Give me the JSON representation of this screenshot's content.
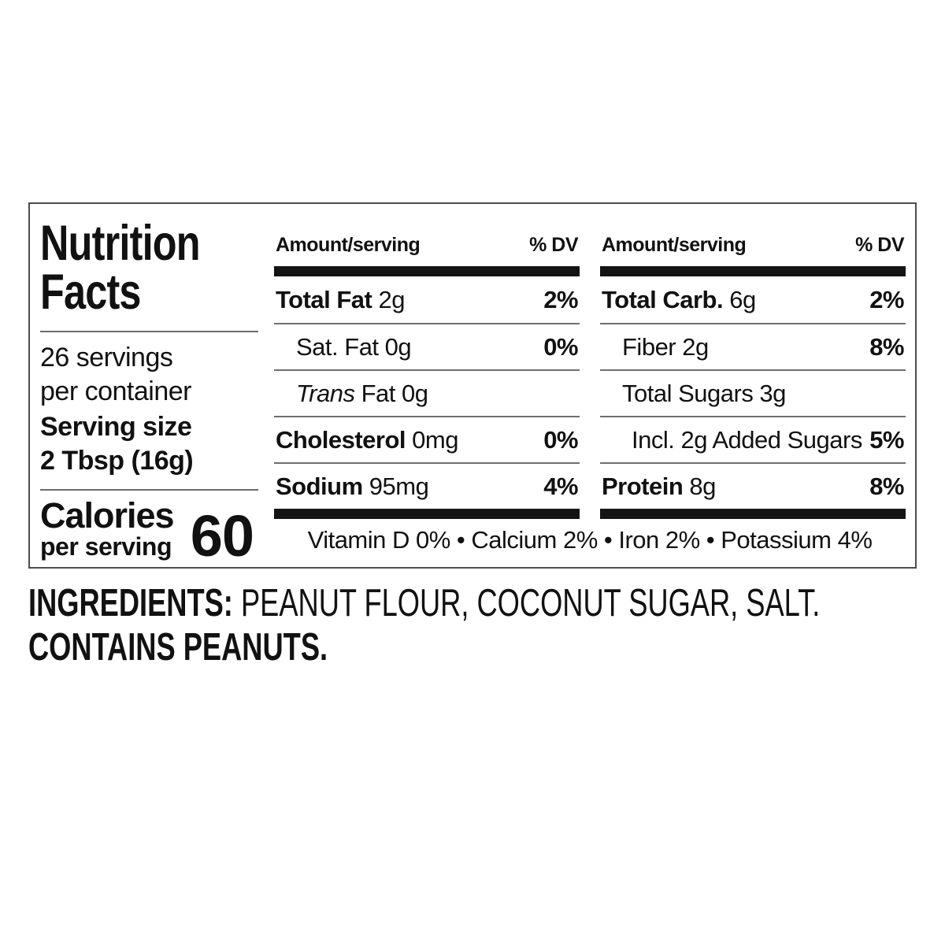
{
  "colors": {
    "ink": "#111111",
    "rule_thick": "#141414",
    "rule_thin": "#6e6e6e",
    "panel_border": "#4d4d4d"
  },
  "label": {
    "title_line1": "Nutrition",
    "title_line2": "Facts",
    "servings_line1": "26 servings",
    "servings_line2": "per container",
    "serving_size_label": "Serving size",
    "serving_size_value": "2 Tbsp (16g)",
    "calories_label": "Calories",
    "calories_sub": "per serving",
    "calories_value": "60",
    "header_amount": "Amount/serving",
    "header_dv": "% DV",
    "columns": [
      {
        "rows": [
          {
            "bold": "Total Fat",
            "rest": " 2g",
            "dv": "2%"
          },
          {
            "rest": "Sat. Fat 0g",
            "dv": "0%"
          },
          {
            "italic": "Trans",
            "rest": " Fat 0g"
          },
          {
            "bold": "Cholesterol",
            "rest": " 0mg",
            "dv": "0%"
          },
          {
            "bold": "Sodium",
            "rest": " 95mg",
            "dv": "4%"
          }
        ]
      },
      {
        "rows": [
          {
            "bold": "Total Carb.",
            "rest": " 6g",
            "dv": "2%"
          },
          {
            "rest": "Fiber 2g",
            "dv": "8%"
          },
          {
            "rest": "Total Sugars 3g"
          },
          {
            "rest": "Incl. 2g Added Sugars",
            "dv": "5%"
          },
          {
            "bold": "Protein",
            "rest": " 8g",
            "dv": "8%"
          }
        ]
      }
    ],
    "micronutrients": "Vitamin D 0% • Calcium 2% • Iron 2% • Potassium 4%"
  },
  "ingredients": {
    "label": "INGREDIENTS:",
    "list": " PEANUT FLOUR, COCONUT SUGAR, SALT.",
    "contains": "CONTAINS PEANUTS."
  }
}
